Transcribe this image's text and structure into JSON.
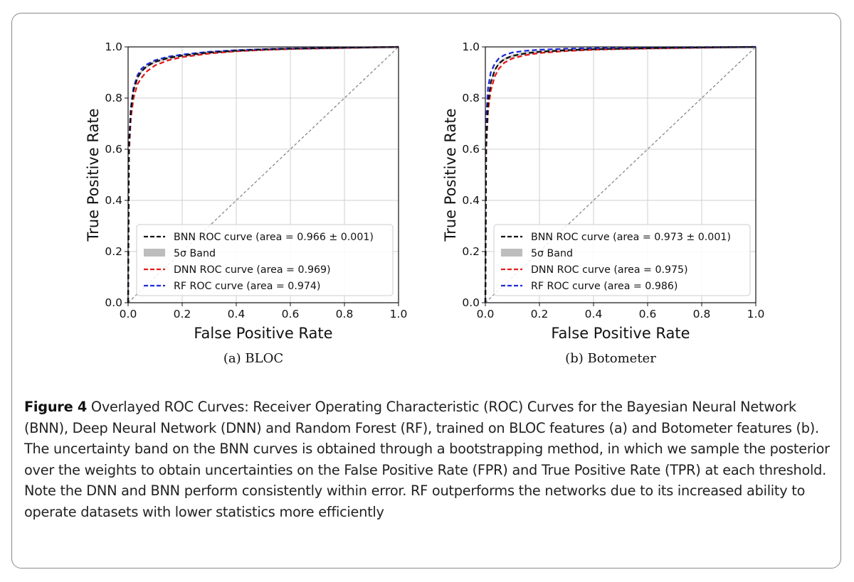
{
  "figure": {
    "label": "Figure 4",
    "caption": " Overlayed ROC Curves: Receiver Operating Characteristic (ROC) Curves for the Bayesian Neural Network (BNN), Deep Neural Network (DNN) and Random Forest (RF), trained on BLOC features (a) and Botometer features (b). The uncertainty band on the BNN curves is obtained through a bootstrapping method, in which we sample the posterior over the weights to obtain uncertainties on the False Positive Rate (FPR) and True Positive Rate (TPR) at each threshold. Note the DNN and BNN perform consistently within error. RF outperforms the networks due to its increased ability to operate datasets with lower statistics more efficiently"
  },
  "colors": {
    "bnn": "#111111",
    "dnn": "#e41a1c",
    "rf": "#1f2bd6",
    "band": "#bdbdbd",
    "diagonal": "#808080",
    "grid": "#cfcfcf"
  },
  "chart_data": [
    {
      "id": "a",
      "type": "line",
      "subcaption": "(a) BLOC",
      "xlabel": "False Positive Rate",
      "ylabel": "True Positive Rate",
      "xlim": [
        0.0,
        1.0
      ],
      "ylim": [
        0.0,
        1.0
      ],
      "xticks": [
        "0.0",
        "0.2",
        "0.4",
        "0.6",
        "0.8",
        "1.0"
      ],
      "yticks": [
        "0.0",
        "0.2",
        "0.4",
        "0.6",
        "0.8",
        "1.0"
      ],
      "grid": true,
      "legend_position": "lower-right",
      "legend": [
        {
          "label": "BNN ROC curve (area = 0.966 ± 0.001)",
          "style": "dashed",
          "series": "bnn"
        },
        {
          "label": "5σ Band",
          "style": "patch",
          "series": "band"
        },
        {
          "label": "DNN ROC curve (area = 0.969)",
          "style": "dashed",
          "series": "dnn"
        },
        {
          "label": "RF ROC curve (area = 0.974)",
          "style": "dashed",
          "series": "rf"
        }
      ],
      "diagonal": {
        "x": [
          0,
          1
        ],
        "y": [
          0,
          1
        ]
      },
      "series": [
        {
          "name": "BNN ROC curve",
          "key": "bnn",
          "x": [
            0,
            0.003,
            0.01,
            0.02,
            0.035,
            0.05,
            0.07,
            0.1,
            0.15,
            0.2,
            0.3,
            0.4,
            0.5,
            0.6,
            0.8,
            1.0
          ],
          "y": [
            0,
            0.6,
            0.75,
            0.83,
            0.88,
            0.905,
            0.925,
            0.942,
            0.957,
            0.966,
            0.978,
            0.985,
            0.99,
            0.993,
            0.997,
            1.0
          ]
        },
        {
          "name": "DNN ROC curve",
          "key": "dnn",
          "x": [
            0,
            0.003,
            0.01,
            0.02,
            0.035,
            0.05,
            0.07,
            0.1,
            0.15,
            0.2,
            0.3,
            0.4,
            0.5,
            0.6,
            0.8,
            1.0
          ],
          "y": [
            0,
            0.58,
            0.72,
            0.8,
            0.855,
            0.88,
            0.905,
            0.928,
            0.948,
            0.96,
            0.974,
            0.983,
            0.988,
            0.992,
            0.996,
            1.0
          ]
        },
        {
          "name": "RF ROC curve",
          "key": "rf",
          "x": [
            0,
            0.003,
            0.01,
            0.02,
            0.035,
            0.05,
            0.07,
            0.1,
            0.15,
            0.2,
            0.3,
            0.4,
            0.5,
            0.6,
            0.8,
            1.0
          ],
          "y": [
            0,
            0.62,
            0.76,
            0.84,
            0.89,
            0.915,
            0.932,
            0.948,
            0.962,
            0.97,
            0.981,
            0.987,
            0.991,
            0.994,
            0.997,
            1.0
          ]
        }
      ]
    },
    {
      "id": "b",
      "type": "line",
      "subcaption": "(b) Botometer",
      "xlabel": "False Positive Rate",
      "ylabel": "True Positive Rate",
      "xlim": [
        0.0,
        1.0
      ],
      "ylim": [
        0.0,
        1.0
      ],
      "xticks": [
        "0.0",
        "0.2",
        "0.4",
        "0.6",
        "0.8",
        "1.0"
      ],
      "yticks": [
        "0.0",
        "0.2",
        "0.4",
        "0.6",
        "0.8",
        "1.0"
      ],
      "grid": true,
      "legend_position": "lower-right",
      "legend": [
        {
          "label": "BNN ROC curve (area = 0.973 ± 0.001)",
          "style": "dashed",
          "series": "bnn"
        },
        {
          "label": "5σ Band",
          "style": "patch",
          "series": "band"
        },
        {
          "label": "DNN ROC curve (area = 0.975)",
          "style": "dashed",
          "series": "dnn"
        },
        {
          "label": "RF ROC curve (area = 0.986)",
          "style": "dashed",
          "series": "rf"
        }
      ],
      "diagonal": {
        "x": [
          0,
          1
        ],
        "y": [
          0,
          1
        ]
      },
      "series": [
        {
          "name": "BNN ROC curve",
          "key": "bnn",
          "x": [
            0,
            0.003,
            0.01,
            0.02,
            0.035,
            0.05,
            0.07,
            0.1,
            0.15,
            0.2,
            0.3,
            0.4,
            0.5,
            0.6,
            0.8,
            1.0
          ],
          "y": [
            0,
            0.62,
            0.78,
            0.86,
            0.91,
            0.935,
            0.952,
            0.965,
            0.975,
            0.981,
            0.987,
            0.991,
            0.993,
            0.995,
            0.998,
            1.0
          ]
        },
        {
          "name": "DNN ROC curve",
          "key": "dnn",
          "x": [
            0,
            0.003,
            0.01,
            0.02,
            0.035,
            0.05,
            0.07,
            0.1,
            0.15,
            0.2,
            0.3,
            0.4,
            0.5,
            0.6,
            0.8,
            1.0
          ],
          "y": [
            0,
            0.6,
            0.75,
            0.83,
            0.885,
            0.915,
            0.938,
            0.955,
            0.968,
            0.976,
            0.984,
            0.989,
            0.992,
            0.994,
            0.997,
            1.0
          ]
        },
        {
          "name": "RF ROC curve",
          "key": "rf",
          "x": [
            0,
            0.003,
            0.01,
            0.02,
            0.035,
            0.05,
            0.07,
            0.1,
            0.15,
            0.2,
            0.3,
            0.4,
            0.5,
            0.6,
            0.8,
            1.0
          ],
          "y": [
            0,
            0.72,
            0.84,
            0.9,
            0.935,
            0.955,
            0.968,
            0.978,
            0.985,
            0.989,
            0.993,
            0.995,
            0.997,
            0.998,
            0.999,
            1.0
          ]
        }
      ]
    }
  ]
}
